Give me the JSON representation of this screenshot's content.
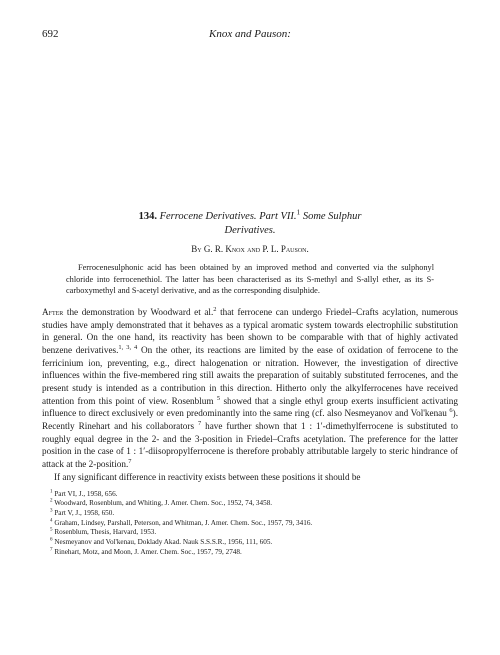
{
  "header": {
    "page_number": "692",
    "running_head": "Knox and Pauson:"
  },
  "title": {
    "number": "134.",
    "main1": "Ferrocene Derivatives.",
    "part": "Part VII.",
    "sup1": "1",
    "main2": "Some Sulphur",
    "line2": "Derivatives."
  },
  "authors": "By G. R. Knox and P. L. Pauson.",
  "abstract": {
    "p1": "Ferrocenesulphonic acid has been obtained by an improved method and converted via the sulphonyl chloride into ferrocenethiol. The latter has been characterised as its S-methyl and S-allyl ether, as its S-carboxymethyl and S-acetyl derivative, and as the corresponding disulphide."
  },
  "body": {
    "p1a": "After",
    "p1b": " the demonstration by Woodward et al.",
    "p1sup": "2",
    "p1c": " that ferrocene can undergo Friedel–Crafts acylation, numerous studies have amply demonstrated that it behaves as a typical aromatic system towards electrophilic substitution in general. On the one hand, its reactivity has been shown to be comparable with that of highly activated benzene derivatives.",
    "p1sup2": "1, 3, 4",
    "p1d": " On the other, its reactions are limited by the ease of oxidation of ferrocene to the ferricinium ion, preventing, e.g., direct halogenation or nitration. However, the investigation of directive influences within the five-membered ring still awaits the preparation of suitably substituted ferrocenes, and the present study is intended as a contribution in this direction. Hitherto only the alkylferrocenes have received attention from this point of view. Rosenblum ",
    "p1sup3": "5",
    "p1e": " showed that a single ethyl group exerts insufficient activating influence to direct exclusively or even predominantly into the same ring (cf. also Nesmeyanov and Vol'kenau ",
    "p1sup4": "6",
    "p1f": "). Recently Rinehart and his collaborators ",
    "p1sup5": "7",
    "p1g": " have further shown that 1 : 1′-dimethylferrocene is substituted to roughly equal degree in the 2- and the 3-position in Friedel–Crafts acetylation. The preference for the latter position in the case of 1 : 1′-diisopropylferrocene is therefore probably attributable largely to steric hindrance of attack at the 2-position.",
    "p1sup6": "7",
    "p2": "If any significant difference in reactivity exists between these positions it should be"
  },
  "footnotes": {
    "f1": "Part VI, J., 1958, 656.",
    "f2": "Woodward, Rosenblum, and Whiting, J. Amer. Chem. Soc., 1952, 74, 3458.",
    "f3": "Part V, J., 1958, 650.",
    "f4": "Graham, Lindsey, Parshall, Peterson, and Whitman, J. Amer. Chem. Soc., 1957, 79, 3416.",
    "f5": "Rosenblum, Thesis, Harvard, 1953.",
    "f6": "Nesmeyanov and Vol'kenau, Doklady Akad. Nauk S.S.S.R., 1956, 111, 605.",
    "f7": "Rinehart, Motz, and Moon, J. Amer. Chem. Soc., 1957, 79, 2748."
  }
}
